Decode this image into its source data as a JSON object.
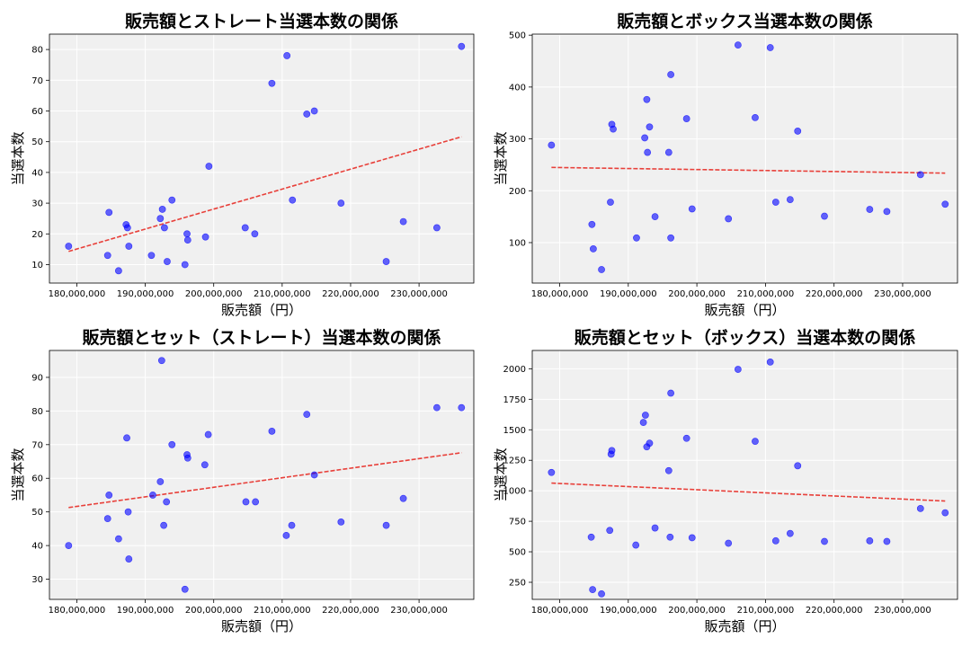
{
  "chart_data": [
    {
      "type": "scatter",
      "title": "販売額とストレート当選本数の関係",
      "xlabel": "販売額（円）",
      "ylabel": "当選本数",
      "xlim": [
        176000000,
        238000000
      ],
      "ylim": [
        4,
        85
      ],
      "xticks": [
        180000000,
        190000000,
        200000000,
        210000000,
        220000000,
        230000000
      ],
      "xtick_labels": [
        "180,000,000",
        "190,000,000",
        "200,000,000",
        "210,000,000",
        "220,000,000",
        "230,000,000"
      ],
      "yticks": [
        10,
        20,
        30,
        40,
        50,
        60,
        70,
        80
      ],
      "ytick_labels": [
        "10",
        "20",
        "30",
        "40",
        "50",
        "60",
        "70",
        "80"
      ],
      "grid": true,
      "point_color": "#0000ff",
      "trend_color": "#e8403a",
      "points": [
        [
          178800000,
          16
        ],
        [
          184500000,
          13
        ],
        [
          184700000,
          27
        ],
        [
          186100000,
          8
        ],
        [
          187200000,
          23
        ],
        [
          187400000,
          22
        ],
        [
          187600000,
          16
        ],
        [
          190900000,
          13
        ],
        [
          192200000,
          25
        ],
        [
          192500000,
          28
        ],
        [
          192800000,
          22
        ],
        [
          193200000,
          11
        ],
        [
          193900000,
          31
        ],
        [
          195800000,
          10
        ],
        [
          196100000,
          20
        ],
        [
          196200000,
          18
        ],
        [
          198800000,
          19
        ],
        [
          199300000,
          42
        ],
        [
          204600000,
          22
        ],
        [
          206000000,
          20
        ],
        [
          208500000,
          69
        ],
        [
          210700000,
          78
        ],
        [
          211500000,
          31
        ],
        [
          213600000,
          59
        ],
        [
          214700000,
          60
        ],
        [
          218600000,
          30
        ],
        [
          225200000,
          11
        ],
        [
          227700000,
          24
        ],
        [
          232600000,
          22
        ],
        [
          236200000,
          81
        ]
      ],
      "trend": {
        "x": [
          178800000,
          236200000
        ],
        "y": [
          14.3,
          51.6
        ]
      }
    },
    {
      "type": "scatter",
      "title": "販売額とボックス当選本数の関係",
      "xlabel": "販売額（円）",
      "ylabel": "当選本数",
      "xlim": [
        176000000,
        238000000
      ],
      "ylim": [
        22,
        502
      ],
      "xticks": [
        180000000,
        190000000,
        200000000,
        210000000,
        220000000,
        230000000
      ],
      "xtick_labels": [
        "180,000,000",
        "190,000,000",
        "200,000,000",
        "210,000,000",
        "220,000,000",
        "230,000,000"
      ],
      "yticks": [
        100,
        200,
        300,
        400,
        500
      ],
      "ytick_labels": [
        "100",
        "200",
        "300",
        "400",
        "500"
      ],
      "grid": true,
      "point_color": "#0000ff",
      "trend_color": "#e8403a",
      "points": [
        [
          178800000,
          288
        ],
        [
          184700000,
          135
        ],
        [
          184900000,
          88
        ],
        [
          186100000,
          48
        ],
        [
          187400000,
          178
        ],
        [
          187600000,
          328
        ],
        [
          187800000,
          319
        ],
        [
          191200000,
          109
        ],
        [
          192400000,
          302
        ],
        [
          192700000,
          376
        ],
        [
          192800000,
          274
        ],
        [
          193100000,
          323
        ],
        [
          193900000,
          150
        ],
        [
          195900000,
          274
        ],
        [
          196200000,
          109
        ],
        [
          196200000,
          424
        ],
        [
          198500000,
          339
        ],
        [
          199300000,
          165
        ],
        [
          204600000,
          146
        ],
        [
          206000000,
          481
        ],
        [
          208500000,
          341
        ],
        [
          210700000,
          476
        ],
        [
          211500000,
          178
        ],
        [
          213600000,
          183
        ],
        [
          214700000,
          315
        ],
        [
          218600000,
          151
        ],
        [
          225200000,
          164
        ],
        [
          227700000,
          160
        ],
        [
          232600000,
          231
        ],
        [
          236200000,
          174
        ]
      ],
      "trend": {
        "x": [
          178800000,
          236200000
        ],
        "y": [
          245,
          234
        ]
      }
    },
    {
      "type": "scatter",
      "title": "販売額とセット（ストレート）当選本数の関係",
      "xlabel": "販売額（円）",
      "ylabel": "当選本数",
      "xlim": [
        176000000,
        238000000
      ],
      "ylim": [
        24,
        98
      ],
      "xticks": [
        180000000,
        190000000,
        200000000,
        210000000,
        220000000,
        230000000
      ],
      "xtick_labels": [
        "180,000,000",
        "190,000,000",
        "200,000,000",
        "210,000,000",
        "220,000,000",
        "230,000,000"
      ],
      "yticks": [
        30,
        40,
        50,
        60,
        70,
        80,
        90
      ],
      "ytick_labels": [
        "30",
        "40",
        "50",
        "60",
        "70",
        "80",
        "90"
      ],
      "grid": true,
      "point_color": "#0000ff",
      "trend_color": "#e8403a",
      "points": [
        [
          178800000,
          40
        ],
        [
          184500000,
          48
        ],
        [
          184700000,
          55
        ],
        [
          186100000,
          42
        ],
        [
          187300000,
          72
        ],
        [
          187500000,
          50
        ],
        [
          187600000,
          36
        ],
        [
          191100000,
          55
        ],
        [
          192200000,
          59
        ],
        [
          192400000,
          95
        ],
        [
          192700000,
          46
        ],
        [
          193100000,
          53
        ],
        [
          193900000,
          70
        ],
        [
          195800000,
          27
        ],
        [
          196100000,
          67
        ],
        [
          196200000,
          66
        ],
        [
          198700000,
          64
        ],
        [
          199200000,
          73
        ],
        [
          204700000,
          53
        ],
        [
          206100000,
          53
        ],
        [
          208500000,
          74
        ],
        [
          210600000,
          43
        ],
        [
          211400000,
          46
        ],
        [
          213600000,
          79
        ],
        [
          214700000,
          61
        ],
        [
          218600000,
          47
        ],
        [
          225200000,
          46
        ],
        [
          227700000,
          54
        ],
        [
          232600000,
          81
        ],
        [
          236200000,
          81
        ]
      ],
      "trend": {
        "x": [
          178800000,
          236200000
        ],
        "y": [
          51.3,
          67.6
        ]
      }
    },
    {
      "type": "scatter",
      "title": "販売額とセット（ボックス）当選本数の関係",
      "xlabel": "販売額（円）",
      "ylabel": "当選本数",
      "xlim": [
        176000000,
        238000000
      ],
      "ylim": [
        110,
        2150
      ],
      "xticks": [
        180000000,
        190000000,
        200000000,
        210000000,
        220000000,
        230000000
      ],
      "xtick_labels": [
        "180,000,000",
        "190,000,000",
        "200,000,000",
        "210,000,000",
        "220,000,000",
        "230,000,000"
      ],
      "yticks": [
        250,
        500,
        750,
        1000,
        1250,
        1500,
        1750,
        2000
      ],
      "ytick_labels": [
        "250",
        "500",
        "750",
        "1000",
        "1250",
        "1500",
        "1750",
        "2000"
      ],
      "grid": true,
      "point_color": "#0000ff",
      "trend_color": "#e8403a",
      "points": [
        [
          178800000,
          1150
        ],
        [
          184600000,
          620
        ],
        [
          184800000,
          190
        ],
        [
          186100000,
          155
        ],
        [
          187300000,
          675
        ],
        [
          187500000,
          1300
        ],
        [
          187600000,
          1330
        ],
        [
          191100000,
          555
        ],
        [
          192200000,
          1560
        ],
        [
          192500000,
          1620
        ],
        [
          192700000,
          1360
        ],
        [
          193100000,
          1390
        ],
        [
          193900000,
          695
        ],
        [
          195900000,
          1165
        ],
        [
          196100000,
          620
        ],
        [
          196200000,
          1800
        ],
        [
          198500000,
          1430
        ],
        [
          199300000,
          615
        ],
        [
          204600000,
          570
        ],
        [
          206000000,
          1995
        ],
        [
          208500000,
          1405
        ],
        [
          210700000,
          2055
        ],
        [
          211500000,
          590
        ],
        [
          213600000,
          650
        ],
        [
          214700000,
          1205
        ],
        [
          218600000,
          585
        ],
        [
          225200000,
          590
        ],
        [
          227700000,
          585
        ],
        [
          232600000,
          855
        ],
        [
          236200000,
          820
        ]
      ],
      "trend": {
        "x": [
          178800000,
          236200000
        ],
        "y": [
          1063,
          916
        ]
      }
    }
  ]
}
